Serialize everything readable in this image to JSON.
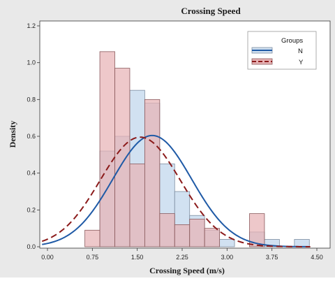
{
  "chart_data": {
    "type": "bar",
    "title": "Crossing Speed",
    "xlabel": "Crossing Speed (m/s)",
    "ylabel": "Density",
    "xlim": [
      -0.15,
      4.6
    ],
    "ylim": [
      0,
      1.2
    ],
    "x_ticks": [
      "0.00",
      "0.75",
      "1.50",
      "2.25",
      "3.00",
      "3.75",
      "4.50"
    ],
    "y_ticks": [
      "0.0",
      "0.2",
      "0.4",
      "0.6",
      "0.8",
      "1.0",
      "1.2"
    ],
    "bin_width": 0.25,
    "bin_edges": [
      0.625,
      0.875,
      1.125,
      1.375,
      1.625,
      1.875,
      2.125,
      2.375,
      2.625,
      2.875,
      3.125,
      3.375,
      3.625,
      3.875,
      4.125,
      4.375,
      4.625
    ],
    "series": [
      {
        "name": "N",
        "color": "#cfdff0",
        "edge": "#7d8da0",
        "values": [
          0.0,
          0.52,
          0.6,
          0.85,
          0.78,
          0.45,
          0.3,
          0.17,
          0.09,
          0.04,
          0.0,
          0.08,
          0.04,
          0.0,
          0.04,
          0.0
        ],
        "normal_fit": {
          "mean": 1.75,
          "sd": 0.66,
          "color": "#1f5aa6",
          "line_style": "solid"
        }
      },
      {
        "name": "Y",
        "color": "#e7b3b5",
        "edge": "#8a5a5c",
        "values": [
          0.09,
          1.06,
          0.97,
          0.45,
          0.8,
          0.18,
          0.12,
          0.15,
          0.1,
          0.0,
          0.0,
          0.18,
          0.0,
          0.0,
          0.0,
          0.0
        ],
        "normal_fit": {
          "mean": 1.55,
          "sd": 0.67,
          "color": "#8b1a1a",
          "line_style": "dashed"
        }
      }
    ],
    "legend": {
      "title": "Groups",
      "position": "top-right"
    },
    "grid": false
  }
}
